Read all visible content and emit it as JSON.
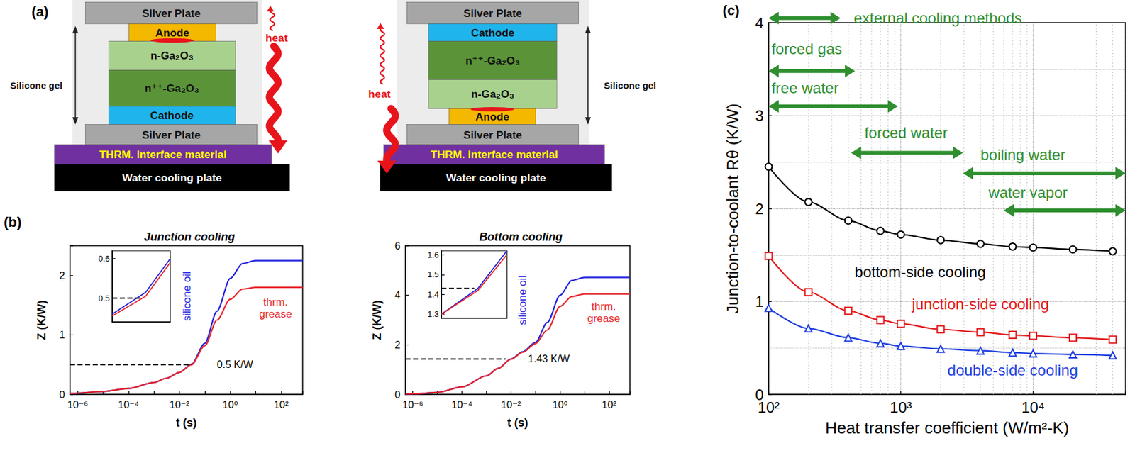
{
  "panel_labels": [
    "(a)",
    "(b)",
    "(c)"
  ],
  "schematic": {
    "diagrams": [
      {
        "layers": [
          "Silver Plate",
          "Anode",
          "n-Ga₂O₃",
          "n⁺⁺-Ga₂O₃",
          "Cathode",
          "Silver Plate",
          "THRM. interface material",
          "Water cooling plate"
        ],
        "side_label": "Silicone gel",
        "heat_label": "heat"
      },
      {
        "layers": [
          "Silver Plate",
          "Cathode",
          "n⁺⁺-Ga₂O₃",
          "n-Ga₂O₃",
          "Anode",
          "Silver Plate",
          "THRM. interface material",
          "Water cooling plate"
        ],
        "side_label": "Silicone gel",
        "heat_label": "heat"
      }
    ]
  },
  "chart_data": [
    {
      "type": "line",
      "title": "Junction cooling",
      "x_label": "t (s)",
      "y_label": "Z (K/W)",
      "log": "x",
      "xlim": [
        5e-07,
        700
      ],
      "xticks": [
        {
          "value": 1e-06,
          "label": "10⁻⁶"
        },
        {
          "value": 0.0001,
          "label": "10⁻⁴"
        },
        {
          "value": 0.01,
          "label": "10⁻²"
        },
        {
          "value": 1,
          "label": "10⁰"
        },
        {
          "value": 100,
          "label": "10²"
        }
      ],
      "ylim": [
        0,
        2.5
      ],
      "yticks": [
        0,
        1,
        2
      ],
      "grid": false,
      "x": [
        5e-07,
        1e-06,
        1e-05,
        0.0001,
        0.001,
        0.003,
        0.01,
        0.03,
        0.1,
        0.3,
        1,
        3,
        10,
        100,
        700
      ],
      "series": [
        {
          "name": "silicone oil",
          "color": "#2323e0",
          "values": [
            0.015,
            0.02,
            0.05,
            0.1,
            0.2,
            0.27,
            0.37,
            0.51,
            0.86,
            1.4,
            1.95,
            2.2,
            2.25,
            2.25,
            2.25
          ],
          "label_at": [
            0.02,
            1.65
          ]
        },
        {
          "name": "thrm. grease",
          "color": "#e8262b",
          "values": [
            0.015,
            0.02,
            0.05,
            0.1,
            0.2,
            0.27,
            0.37,
            0.5,
            0.82,
            1.25,
            1.6,
            1.77,
            1.8,
            1.8,
            1.8
          ],
          "label_at": [
            60,
            1.45
          ]
        }
      ],
      "reference_line": {
        "y": 0.5,
        "x_range": [
          5e-07,
          0.03
        ],
        "label": "0.5 K/W",
        "label_at": [
          0.3,
          0.5
        ]
      },
      "inset": {
        "type": "line",
        "log": "x",
        "tick_labels": "y",
        "xlim": [
          0.015,
          0.05
        ],
        "ylim": [
          0.44,
          0.62
        ],
        "yticks": [
          0.5,
          0.6
        ],
        "x": [
          0.015,
          0.03,
          0.05
        ],
        "series": [
          {
            "color": "#2323e0",
            "values": [
              0.46,
              0.515,
              0.6
            ]
          },
          {
            "color": "#e8262b",
            "values": [
              0.455,
              0.505,
              0.59
            ]
          }
        ],
        "reference_line": {
          "y": 0.5,
          "x_range": [
            0.015,
            0.028
          ]
        }
      }
    },
    {
      "type": "line",
      "title": "Bottom cooling",
      "x_label": "t (s)",
      "y_label": "Z (K/W)",
      "log": "x",
      "xlim": [
        5e-07,
        700
      ],
      "xticks": [
        {
          "value": 1e-06,
          "label": "10⁻⁶"
        },
        {
          "value": 0.0001,
          "label": "10⁻⁴"
        },
        {
          "value": 0.01,
          "label": "10⁻²"
        },
        {
          "value": 1,
          "label": "10⁰"
        },
        {
          "value": 100,
          "label": "10²"
        }
      ],
      "ylim": [
        0,
        6
      ],
      "yticks": [
        0,
        2,
        4,
        6
      ],
      "grid": false,
      "x": [
        5e-07,
        1e-06,
        1e-05,
        0.0001,
        0.001,
        0.003,
        0.01,
        0.03,
        0.1,
        0.3,
        1,
        3,
        10,
        100,
        700
      ],
      "series": [
        {
          "name": "silicone oil",
          "color": "#2323e0",
          "values": [
            0.01,
            0.02,
            0.08,
            0.3,
            0.75,
            1.05,
            1.43,
            1.72,
            2.1,
            2.9,
            4.0,
            4.6,
            4.72,
            4.72,
            4.72
          ],
          "label_at": [
            0.03,
            3.8
          ]
        },
        {
          "name": "thrm. grease",
          "color": "#e8262b",
          "values": [
            0.01,
            0.02,
            0.08,
            0.3,
            0.75,
            1.05,
            1.42,
            1.7,
            2.05,
            2.6,
            3.55,
            3.95,
            4.05,
            4.05,
            4.05
          ],
          "label_at": [
            60,
            3.3
          ]
        }
      ],
      "reference_line": {
        "y": 1.43,
        "x_range": [
          5e-07,
          0.006
        ],
        "label": "1.43 K/W",
        "label_at": [
          0.05,
          1.43
        ]
      },
      "inset": {
        "type": "line",
        "log": "x",
        "tick_labels": "y",
        "xlim": [
          0.006,
          0.015
        ],
        "ylim": [
          1.28,
          1.62
        ],
        "yticks": [
          1.3,
          1.4,
          1.5,
          1.6
        ],
        "x": [
          0.006,
          0.01,
          0.015
        ],
        "series": [
          {
            "color": "#2323e0",
            "values": [
              1.3,
              1.43,
              1.62
            ]
          },
          {
            "color": "#e8262b",
            "values": [
              1.3,
              1.42,
              1.6
            ]
          }
        ],
        "reference_line": {
          "y": 1.43,
          "x_range": [
            0.006,
            0.0095
          ]
        }
      }
    },
    {
      "type": "line",
      "x_label": "Heat transfer coefficient (W/m²-K)",
      "y_label": "Junction-to-coolant Rθ (K/W)",
      "log": "x",
      "xlim": [
        100,
        50000
      ],
      "xticks": [
        {
          "value": 100,
          "label": "10²"
        },
        {
          "value": 1000,
          "label": "10³"
        },
        {
          "value": 10000,
          "label": "10⁴"
        }
      ],
      "ylim": [
        0,
        4
      ],
      "yticks": [
        0,
        1,
        2,
        3,
        4
      ],
      "grid": true,
      "x": [
        100,
        200,
        400,
        700,
        1000,
        2000,
        4000,
        7000,
        10000,
        20000,
        40000
      ],
      "series": [
        {
          "name": "bottom-side cooling",
          "color": "#000000",
          "marker": "circle",
          "values": [
            2.45,
            2.07,
            1.87,
            1.76,
            1.72,
            1.66,
            1.62,
            1.59,
            1.58,
            1.56,
            1.54
          ],
          "label_at": [
            1400,
            1.32
          ]
        },
        {
          "name": "junction-side cooling",
          "color": "#e31a1c",
          "marker": "square",
          "values": [
            1.49,
            1.1,
            0.9,
            0.8,
            0.76,
            0.7,
            0.67,
            0.64,
            0.63,
            0.61,
            0.59
          ],
          "label_at": [
            4000,
            0.97
          ]
        },
        {
          "name": "double-side cooling",
          "color": "#1f3fe0",
          "marker": "triangle",
          "values": [
            0.93,
            0.71,
            0.61,
            0.55,
            0.52,
            0.49,
            0.47,
            0.45,
            0.44,
            0.43,
            0.42
          ],
          "label_at": [
            7000,
            0.26
          ]
        }
      ],
      "annotations": [
        {
          "text": "external cooling methods",
          "x_range": [
            100,
            350
          ],
          "y": 4.05,
          "text_at": [
            440,
            4.05
          ],
          "color": "#2f8f2f"
        },
        {
          "text": "forced gas",
          "x_range": [
            100,
            450
          ],
          "y": 3.48,
          "text_at": [
            105,
            3.72
          ],
          "color": "#2f8f2f"
        },
        {
          "text": "free water",
          "x_range": [
            100,
            950
          ],
          "y": 3.1,
          "text_at": [
            105,
            3.3
          ],
          "color": "#2f8f2f"
        },
        {
          "text": "forced water",
          "x_range": [
            420,
            2950
          ],
          "y": 2.6,
          "text_at": [
            530,
            2.82
          ],
          "color": "#2f8f2f"
        },
        {
          "text": "boiling water",
          "x_range": [
            2950,
            50000
          ],
          "y": 2.38,
          "text_at": [
            4000,
            2.58
          ],
          "color": "#2f8f2f"
        },
        {
          "text": "water vapor",
          "x_range": [
            6000,
            50000
          ],
          "y": 1.98,
          "text_at": [
            4600,
            2.17
          ],
          "color": "#2f8f2f"
        }
      ]
    }
  ]
}
